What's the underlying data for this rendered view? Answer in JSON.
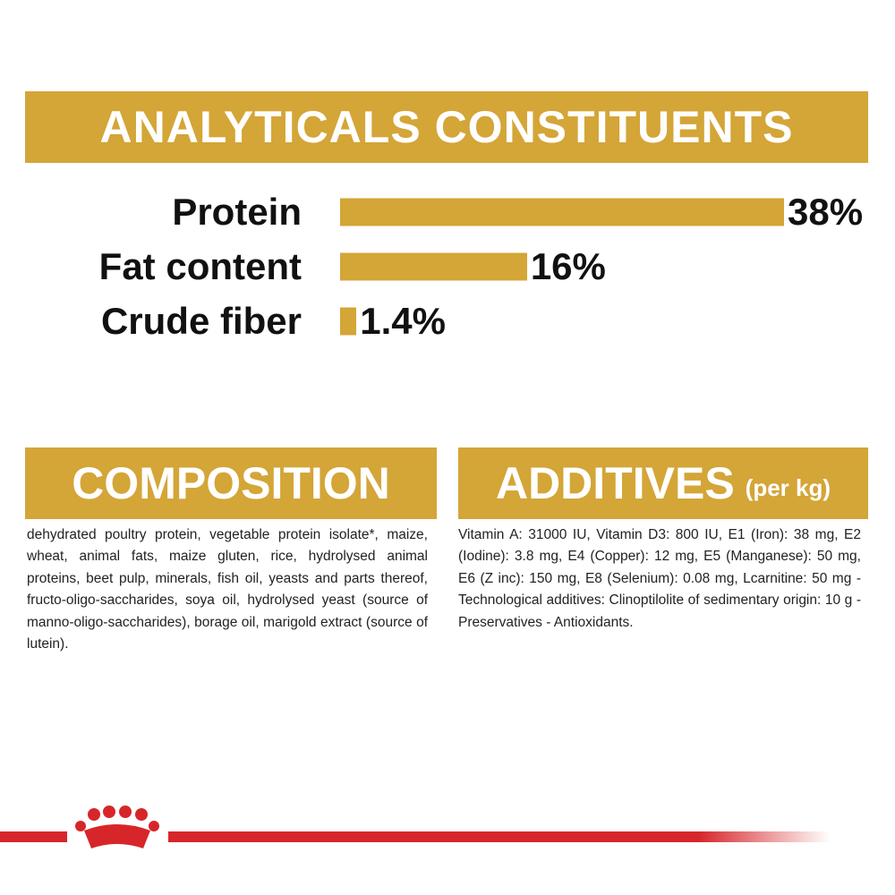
{
  "chart_data": {
    "type": "bar",
    "orientation": "horizontal",
    "title": "ANALYTICALS CONSTITUENTS",
    "categories": [
      "Protein",
      "Fat content",
      "Crude fiber"
    ],
    "values": [
      38,
      16,
      1.4
    ],
    "value_labels": [
      "38%",
      "16%",
      "1.4%"
    ],
    "color": "#d4a537"
  },
  "composition": {
    "title": "COMPOSITION",
    "text": "dehydrated poultry protein, vegetable protein isolate*, maize, wheat, animal fats, maize gluten, rice, hydrolysed animal proteins, beet pulp, minerals, fish oil, yeasts and parts thereof, fructo-oligo-saccharides, soya oil, hydrolysed yeast (source of manno-oligo-saccharides), borage oil, marigold extract (source of lutein)."
  },
  "additives": {
    "title": "ADDITIVES",
    "unit": "(per kg)",
    "text": "Vitamin A: 31000 IU, Vitamin D3: 800 IU, E1 (Iron): 38 mg, E2 (Iodine): 3.8 mg, E4 (Copper): 12 mg, E5 (Manganese): 50 mg, E6 (Z inc): 150 mg, E8 (Selenium): 0.08 mg, Lcarnitine: 50 mg - Technological additives: Clinoptilolite of sedimentary origin: 10 g - Preservatives - Antioxidants."
  }
}
